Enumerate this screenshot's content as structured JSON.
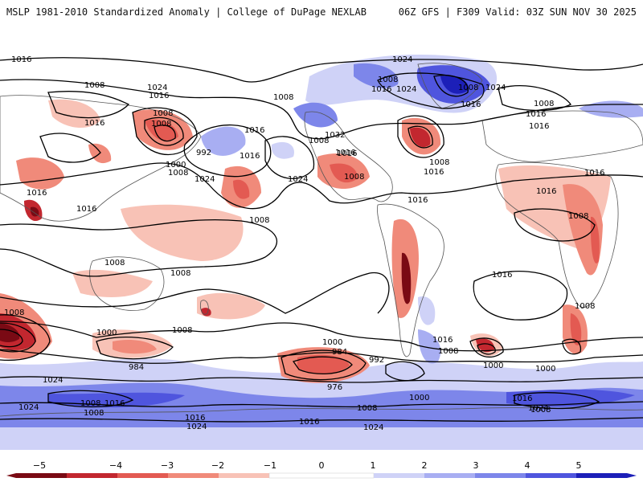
{
  "header": {
    "left_title": "MSLP 1981-2010 Standardized Anomaly | College of DuPage NEXLAB",
    "right_title": "06Z GFS | F309 Valid: 03Z SUN NOV 30 2025"
  },
  "colors": {
    "neg5": "#7a0a14",
    "neg4": "#c2272f",
    "neg3": "#e35a52",
    "neg2": "#f08a7a",
    "neg1": "#f8c2b6",
    "zero": "#ffffff",
    "pos1": "#cfd2f7",
    "pos2": "#a8aef2",
    "pos3": "#7d86ea",
    "pos4": "#4f55de",
    "pos5": "#1c1fb8"
  },
  "colorbar": {
    "ticks": [
      "−5",
      "−4",
      "−3",
      "−2",
      "−1",
      "0",
      "1",
      "2",
      "3",
      "4",
      "5"
    ]
  },
  "contours": {
    "labels": [
      {
        "id": "l01",
        "text": "1016"
      },
      {
        "id": "l02",
        "text": "1008"
      },
      {
        "id": "l03",
        "text": "1024"
      },
      {
        "id": "l04",
        "text": "1016"
      },
      {
        "id": "l05",
        "text": "1016"
      },
      {
        "id": "l06",
        "text": "1008"
      },
      {
        "id": "l07",
        "text": "1008"
      },
      {
        "id": "l08",
        "text": "992"
      },
      {
        "id": "l09",
        "text": "1000"
      },
      {
        "id": "l10",
        "text": "1008"
      },
      {
        "id": "l11",
        "text": "1024"
      },
      {
        "id": "l12",
        "text": "1024"
      },
      {
        "id": "l13",
        "text": "1016"
      },
      {
        "id": "l14",
        "text": "1016"
      },
      {
        "id": "l15",
        "text": "1008"
      },
      {
        "id": "l16",
        "text": "1008"
      },
      {
        "id": "l17",
        "text": "1016"
      },
      {
        "id": "l18",
        "text": "1024"
      },
      {
        "id": "l19",
        "text": "1016"
      },
      {
        "id": "l20",
        "text": "1008"
      },
      {
        "id": "l21",
        "text": "1024"
      },
      {
        "id": "l22",
        "text": "1008"
      },
      {
        "id": "l23",
        "text": "1024"
      },
      {
        "id": "l24",
        "text": "1016"
      },
      {
        "id": "l25",
        "text": "1032"
      },
      {
        "id": "l26",
        "text": "1016"
      },
      {
        "id": "l27",
        "text": "1008"
      },
      {
        "id": "l28",
        "text": "1008"
      },
      {
        "id": "l29",
        "text": "1016"
      },
      {
        "id": "l30",
        "text": "1016"
      },
      {
        "id": "l31",
        "text": "1008"
      },
      {
        "id": "l32",
        "text": "1016"
      },
      {
        "id": "l33",
        "text": "1016"
      },
      {
        "id": "l34",
        "text": "1016"
      },
      {
        "id": "l35",
        "text": "1008"
      },
      {
        "id": "l36",
        "text": "1016"
      },
      {
        "id": "l37",
        "text": "1008"
      },
      {
        "id": "l38",
        "text": "1008"
      },
      {
        "id": "l39",
        "text": "1016"
      },
      {
        "id": "l40",
        "text": "1016"
      },
      {
        "id": "l41",
        "text": "1008"
      },
      {
        "id": "l42",
        "text": "1016"
      },
      {
        "id": "l43",
        "text": "1008"
      },
      {
        "id": "l44",
        "text": "1000"
      },
      {
        "id": "l45",
        "text": "984"
      },
      {
        "id": "l46",
        "text": "1008"
      },
      {
        "id": "l47",
        "text": "1000"
      },
      {
        "id": "l48",
        "text": "984"
      },
      {
        "id": "l49",
        "text": "992"
      },
      {
        "id": "l50",
        "text": "976"
      },
      {
        "id": "l51",
        "text": "1000"
      },
      {
        "id": "l52",
        "text": "1016"
      },
      {
        "id": "l53",
        "text": "1008"
      },
      {
        "id": "l54",
        "text": "1000"
      },
      {
        "id": "l55",
        "text": "1000"
      },
      {
        "id": "l56",
        "text": "1008"
      },
      {
        "id": "l57",
        "text": "1016"
      },
      {
        "id": "l58",
        "text": "1024"
      },
      {
        "id": "l59",
        "text": "1008"
      },
      {
        "id": "l60",
        "text": "1016"
      },
      {
        "id": "l61",
        "text": "1024"
      },
      {
        "id": "l62",
        "text": "1024"
      },
      {
        "id": "l63",
        "text": "1016"
      },
      {
        "id": "l64",
        "text": "1008"
      },
      {
        "id": "l65",
        "text": "1016"
      },
      {
        "id": "l66",
        "text": "1024"
      },
      {
        "id": "l67",
        "text": "1008"
      },
      {
        "id": "l68",
        "text": "1024"
      },
      {
        "id": "l69",
        "text": "1008"
      }
    ]
  }
}
